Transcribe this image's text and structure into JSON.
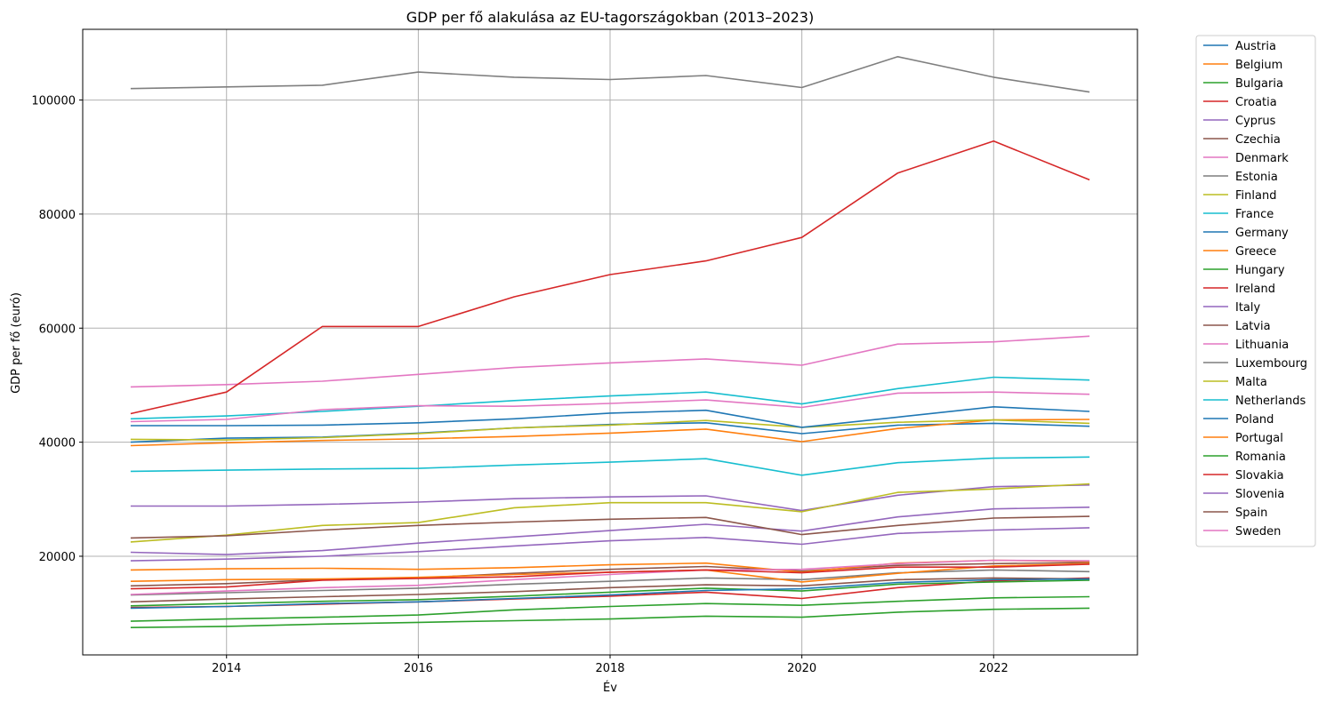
{
  "chart_data": {
    "type": "line",
    "title": "GDP per fő alakulása az EU-tagországokban (2013–2023)",
    "xlabel": "Év",
    "ylabel": "GDP per fő (euró)",
    "x": [
      2013,
      2014,
      2015,
      2016,
      2017,
      2018,
      2019,
      2020,
      2021,
      2022,
      2023
    ],
    "xlim": [
      2012.5,
      2023.5
    ],
    "ylim": [
      2700,
      112400
    ],
    "xticks": [
      2014,
      2016,
      2018,
      2020,
      2022
    ],
    "yticks": [
      20000,
      40000,
      60000,
      80000,
      100000
    ],
    "grid": true,
    "legend_position": "outside-right",
    "series": [
      {
        "name": "Austria",
        "color": "#1f77b4",
        "values": [
          40000,
          40700,
          40900,
          41600,
          42500,
          43100,
          43400,
          41500,
          43000,
          43300,
          42800
        ]
      },
      {
        "name": "Belgium",
        "color": "#ff7f0e",
        "values": [
          39400,
          39900,
          40300,
          40600,
          41000,
          41600,
          42300,
          40100,
          42400,
          43900,
          44000
        ]
      },
      {
        "name": "Bulgaria",
        "color": "#2ca02c",
        "values": [
          7500,
          7700,
          8100,
          8400,
          8700,
          9000,
          9500,
          9300,
          10200,
          10700,
          10900
        ]
      },
      {
        "name": "Croatia",
        "color": "#d62728",
        "values": [
          11000,
          11200,
          11600,
          12000,
          12500,
          13000,
          13700,
          12600,
          14500,
          15700,
          16200
        ]
      },
      {
        "name": "Cyprus",
        "color": "#9467bd",
        "values": [
          20700,
          20300,
          21000,
          22300,
          23400,
          24500,
          25600,
          24400,
          26900,
          28300,
          28600
        ]
      },
      {
        "name": "Czechia",
        "color": "#8c564b",
        "values": [
          14800,
          15200,
          15900,
          16200,
          17000,
          17700,
          18200,
          17400,
          18400,
          18700,
          18900
        ]
      },
      {
        "name": "Denmark",
        "color": "#e377c2",
        "values": [
          49700,
          50100,
          50700,
          51900,
          53100,
          53900,
          54600,
          53500,
          57200,
          57600,
          58600
        ]
      },
      {
        "name": "Estonia",
        "color": "#7f7f7f",
        "values": [
          13200,
          13600,
          14000,
          14400,
          15100,
          15600,
          16200,
          15900,
          17100,
          17600,
          17300
        ]
      },
      {
        "name": "Finland",
        "color": "#bcbd22",
        "values": [
          40500,
          40400,
          40800,
          41500,
          42500,
          43000,
          43800,
          42600,
          43500,
          43900,
          43300
        ]
      },
      {
        "name": "France",
        "color": "#17becf",
        "values": [
          34900,
          35100,
          35300,
          35400,
          36000,
          36500,
          37100,
          34200,
          36400,
          37200,
          37400
        ]
      },
      {
        "name": "Germany",
        "color": "#1f77b4",
        "values": [
          42900,
          42900,
          43000,
          43400,
          44100,
          45100,
          45600,
          42600,
          44400,
          46200,
          45400
        ]
      },
      {
        "name": "Greece",
        "color": "#ff7f0e",
        "values": [
          17600,
          17800,
          17900,
          17700,
          18000,
          18500,
          18800,
          17200,
          18800,
          19300,
          19100
        ]
      },
      {
        "name": "Hungary",
        "color": "#2ca02c",
        "values": [
          11300,
          11700,
          12100,
          12400,
          13000,
          13700,
          14400,
          13900,
          15100,
          15500,
          15800
        ]
      },
      {
        "name": "Ireland",
        "color": "#d62728",
        "values": [
          45000,
          48800,
          60300,
          60300,
          65500,
          69400,
          71800,
          75900,
          87200,
          92800,
          86000
        ]
      },
      {
        "name": "Italy",
        "color": "#9467bd",
        "values": [
          28800,
          28800,
          29100,
          29500,
          30100,
          30400,
          30600,
          28000,
          30700,
          32200,
          32500
        ]
      },
      {
        "name": "Latvia",
        "color": "#8c564b",
        "values": [
          12000,
          12500,
          12900,
          13300,
          13800,
          14500,
          15000,
          14800,
          15900,
          16200,
          16000
        ]
      },
      {
        "name": "Lithuania",
        "color": "#e377c2",
        "values": [
          13300,
          13900,
          14500,
          14900,
          15900,
          16800,
          17600,
          17700,
          18700,
          19300,
          19200
        ]
      },
      {
        "name": "Luxembourg",
        "color": "#7f7f7f",
        "values": [
          102000,
          102300,
          102600,
          104900,
          104000,
          103600,
          104300,
          102200,
          107600,
          104000,
          101400
        ]
      },
      {
        "name": "Malta",
        "color": "#bcbd22",
        "values": [
          22500,
          23700,
          25400,
          25900,
          28500,
          29400,
          29400,
          27800,
          31200,
          31800,
          32700
        ]
      },
      {
        "name": "Netherlands",
        "color": "#17becf",
        "values": [
          44100,
          44600,
          45400,
          46300,
          47300,
          48100,
          48800,
          46700,
          49400,
          51400,
          50900
        ]
      },
      {
        "name": "Poland",
        "color": "#1f77b4",
        "values": [
          10900,
          11200,
          11700,
          12000,
          12600,
          13200,
          14000,
          14300,
          15400,
          15900,
          16000
        ]
      },
      {
        "name": "Portugal",
        "color": "#ff7f0e",
        "values": [
          15600,
          15900,
          16000,
          16300,
          16800,
          17200,
          17600,
          15500,
          17000,
          18300,
          18700
        ]
      },
      {
        "name": "Romania",
        "color": "#2ca02c",
        "values": [
          8600,
          9000,
          9300,
          9700,
          10600,
          11200,
          11700,
          11400,
          12100,
          12700,
          12900
        ]
      },
      {
        "name": "Slovakia",
        "color": "#d62728",
        "values": [
          14300,
          14600,
          15800,
          16100,
          16400,
          17200,
          17600,
          17100,
          18100,
          18100,
          18600
        ]
      },
      {
        "name": "Slovenia",
        "color": "#9467bd",
        "values": [
          19200,
          19500,
          20000,
          20800,
          21800,
          22700,
          23300,
          22100,
          24000,
          24600,
          25000
        ]
      },
      {
        "name": "Spain",
        "color": "#8c564b",
        "values": [
          23200,
          23600,
          24600,
          25400,
          26000,
          26500,
          26800,
          23800,
          25400,
          26700,
          27000
        ]
      },
      {
        "name": "Sweden",
        "color": "#e377c2",
        "values": [
          43600,
          44000,
          45700,
          46400,
          46300,
          46800,
          47400,
          46100,
          48600,
          48800,
          48400
        ]
      }
    ]
  }
}
